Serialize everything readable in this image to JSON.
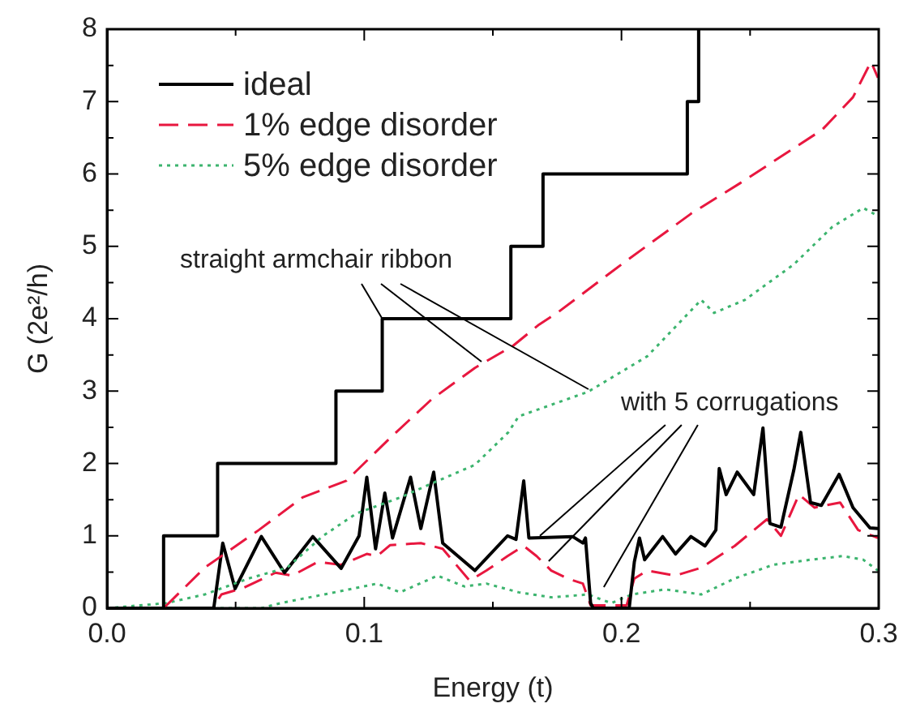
{
  "chart_data": {
    "type": "line",
    "xlabel": "Energy (t)",
    "ylabel": "G (2e²/h)",
    "xlim": [
      0,
      0.3
    ],
    "ylim": [
      0,
      8
    ],
    "xticks": [
      {
        "value": 0,
        "label": "0.0"
      },
      {
        "value": 0.05,
        "label": null
      },
      {
        "value": 0.1,
        "label": "0.1"
      },
      {
        "value": 0.15,
        "label": null
      },
      {
        "value": 0.2,
        "label": "0.2"
      },
      {
        "value": 0.25,
        "label": null
      },
      {
        "value": 0.3,
        "label": "0.3"
      }
    ],
    "yticks": [
      0,
      {
        "value": 0.5,
        "label": null
      },
      1,
      {
        "value": 1.5,
        "label": null
      },
      2,
      {
        "value": 2.5,
        "label": null
      },
      3,
      {
        "value": 3.5,
        "label": null
      },
      4,
      {
        "value": 4.5,
        "label": null
      },
      5,
      {
        "value": 5.5,
        "label": null
      },
      6,
      {
        "value": 6.5,
        "label": null
      },
      7,
      {
        "value": 7.5,
        "label": null
      },
      8
    ],
    "grid": false,
    "legend": "top left",
    "marker": "none",
    "annotations": [
      {
        "text": "straight armchair ribbon",
        "x": 0.107,
        "y": 4
      },
      {
        "text": "with 5 corrugations",
        "x": 0.168,
        "y": 1
      }
    ],
    "series": [
      {
        "name": "ideal",
        "type": "step",
        "color": "#000000",
        "line_style": "solid",
        "x": [
          0,
          0.022,
          0.043,
          0.089,
          0.107,
          0.157,
          0.1695,
          0.2256,
          0.23
        ],
        "values": [
          0,
          1,
          2,
          3,
          4,
          5,
          6,
          7,
          8
        ]
      },
      {
        "name": "1% edge disorder",
        "color": "#e8173f",
        "line_style": "dashed",
        "x": [
          0,
          0.022,
          0.038,
          0.059,
          0.076,
          0.093,
          0.11,
          0.126,
          0.143,
          0.158,
          0.168,
          0.175,
          0.2,
          0.227,
          0.246,
          0.278,
          0.29,
          0.297,
          0.2997
        ],
        "values": [
          0,
          0,
          0.56,
          1.08,
          1.53,
          1.76,
          2.35,
          2.88,
          3.32,
          3.63,
          3.92,
          4.08,
          4.75,
          5.45,
          5.87,
          6.61,
          7.06,
          7.55,
          7.33
        ]
      },
      {
        "name": "5% edge disorder",
        "color": "#3cb46e",
        "line_style": "dotted",
        "x": [
          0,
          0.023,
          0.038,
          0.055,
          0.07,
          0.084,
          0.097,
          0.114,
          0.126,
          0.143,
          0.156,
          0.16,
          0.187,
          0.21,
          0.231,
          0.236,
          0.248,
          0.267,
          0.282,
          0.294,
          0.2997
        ],
        "values": [
          0,
          0.07,
          0.19,
          0.41,
          0.56,
          1.0,
          1.31,
          1.53,
          1.72,
          1.98,
          2.43,
          2.65,
          2.99,
          3.48,
          4.26,
          4.08,
          4.26,
          4.75,
          5.27,
          5.53,
          5.42
        ]
      },
      {
        "color": "#000000",
        "line_style": "solid",
        "x": [
          0,
          0.0415,
          0.045,
          0.0498,
          0.06,
          0.069,
          0.08,
          0.091,
          0.098,
          0.101,
          0.1044,
          0.108,
          0.111,
          0.118,
          0.122,
          0.127,
          0.1305,
          0.143,
          0.1557,
          0.159,
          0.162,
          0.164,
          0.181,
          0.185,
          0.186,
          0.188,
          0.189,
          0.203,
          0.205,
          0.207,
          0.209,
          0.216,
          0.221,
          0.227,
          0.2325,
          0.2367,
          0.238,
          0.2407,
          0.245,
          0.2514,
          0.255,
          0.2577,
          0.262,
          0.267,
          0.2697,
          0.2735,
          0.2777,
          0.2846,
          0.29,
          0.2966,
          0.2997
        ],
        "values": [
          0,
          0,
          0.9,
          0.27,
          0.99,
          0.49,
          0.99,
          0.55,
          1.0,
          1.81,
          0.82,
          1.59,
          0.97,
          1.81,
          1.1,
          1.88,
          0.9,
          0.52,
          1.0,
          0.95,
          1.76,
          0.97,
          0.99,
          0.9,
          0.97,
          0.07,
          0,
          0,
          0.64,
          0.97,
          0.67,
          0.99,
          0.75,
          0.99,
          0.86,
          1.08,
          1.93,
          1.57,
          1.88,
          1.57,
          2.49,
          1.17,
          1.12,
          1.91,
          2.43,
          1.46,
          1.42,
          1.85,
          1.39,
          1.11,
          1.1
        ]
      },
      {
        "color": "#e8173f",
        "line_style": "dashed",
        "x": [
          0,
          0.041,
          0.0445,
          0.053,
          0.0655,
          0.072,
          0.082,
          0.091,
          0.101,
          0.105,
          0.11,
          0.122,
          0.1305,
          0.141,
          0.1475,
          0.1557,
          0.162,
          0.167,
          0.1727,
          0.179,
          0.185,
          0.188,
          0.202,
          0.205,
          0.21,
          0.221,
          0.231,
          0.244,
          0.2566,
          0.262,
          0.269,
          0.275,
          0.285,
          0.292,
          0.2997
        ],
        "values": [
          0,
          0,
          0.19,
          0.28,
          0.49,
          0.45,
          0.64,
          0.6,
          0.75,
          0.72,
          0.87,
          0.9,
          0.82,
          0.38,
          0.52,
          0.72,
          0.86,
          0.72,
          0.52,
          0.41,
          0.34,
          0.04,
          0.04,
          0.41,
          0.52,
          0.45,
          0.56,
          0.86,
          1.23,
          1.0,
          1.57,
          1.39,
          1.46,
          1.08,
          0.97
        ]
      },
      {
        "color": "#3cb46e",
        "line_style": "dotted",
        "x": [
          0,
          0.06,
          0.0675,
          0.0886,
          0.105,
          0.114,
          0.1285,
          0.139,
          0.1475,
          0.16,
          0.1727,
          0.187,
          0.196,
          0.204,
          0.217,
          0.231,
          0.244,
          0.259,
          0.2735,
          0.286,
          0.294,
          0.2997
        ],
        "values": [
          0,
          0,
          0.07,
          0.22,
          0.34,
          0.22,
          0.45,
          0.3,
          0.34,
          0.22,
          0.15,
          0.19,
          0.07,
          0.19,
          0.26,
          0.19,
          0.41,
          0.6,
          0.67,
          0.72,
          0.67,
          0.52
        ]
      }
    ]
  }
}
